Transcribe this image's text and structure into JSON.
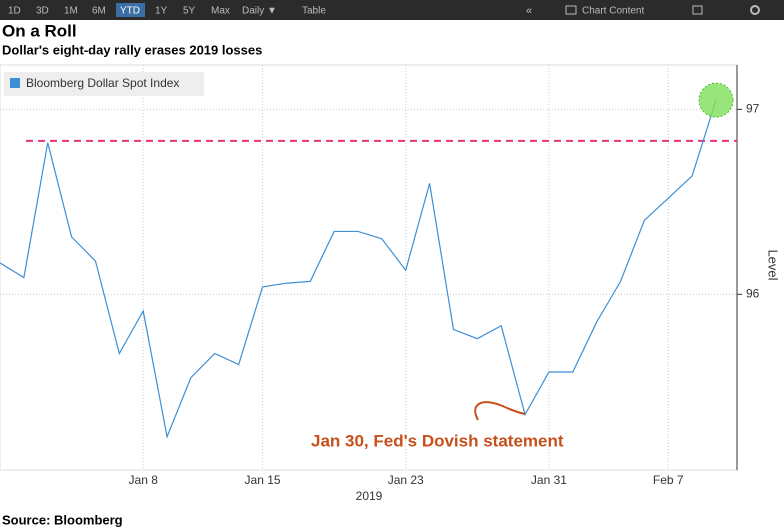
{
  "toolbar": {
    "ranges": [
      "1D",
      "3D",
      "1M",
      "6M",
      "YTD",
      "1Y",
      "5Y",
      "Max"
    ],
    "active": "YTD",
    "frequency": "Daily ▼",
    "table": "Table",
    "content": "Chart Content"
  },
  "chart_data": {
    "type": "line",
    "title": "On a Roll",
    "subtitle": "Dollar's eight-day rally erases 2019 losses",
    "categories": [
      null,
      null,
      null,
      null,
      null,
      null,
      "Jan 8",
      null,
      null,
      null,
      null,
      "Jan 15",
      null,
      null,
      null,
      null,
      null,
      "Jan 23",
      null,
      null,
      null,
      null,
      null,
      "Jan 31",
      null,
      null,
      null,
      null,
      "Feb 7",
      null,
      null
    ],
    "x_label": "2019",
    "series": [
      {
        "name": "Bloomberg Dollar Spot Index",
        "color": "#3d8fd6",
        "values": [
          96.17,
          96.09,
          96.82,
          96.31,
          96.18,
          95.68,
          95.91,
          95.23,
          95.55,
          95.68,
          95.62,
          96.04,
          96.06,
          96.07,
          96.34,
          96.34,
          96.3,
          96.13,
          96.6,
          95.81,
          95.76,
          95.83,
          95.35,
          95.58,
          95.58,
          95.85,
          96.07,
          96.4,
          96.52,
          96.64,
          97.05
        ]
      }
    ],
    "y_label": "Level",
    "ylim": [
      95.05,
      97.24
    ],
    "yticks": [
      96,
      97
    ],
    "reference_line": {
      "value": 96.83,
      "color": "#e8337a"
    },
    "annotation": "Jan 30, Fed's Dovish statement",
    "annotation_color": "#c8501a",
    "grid": true
  },
  "source": "Source: Bloomberg"
}
